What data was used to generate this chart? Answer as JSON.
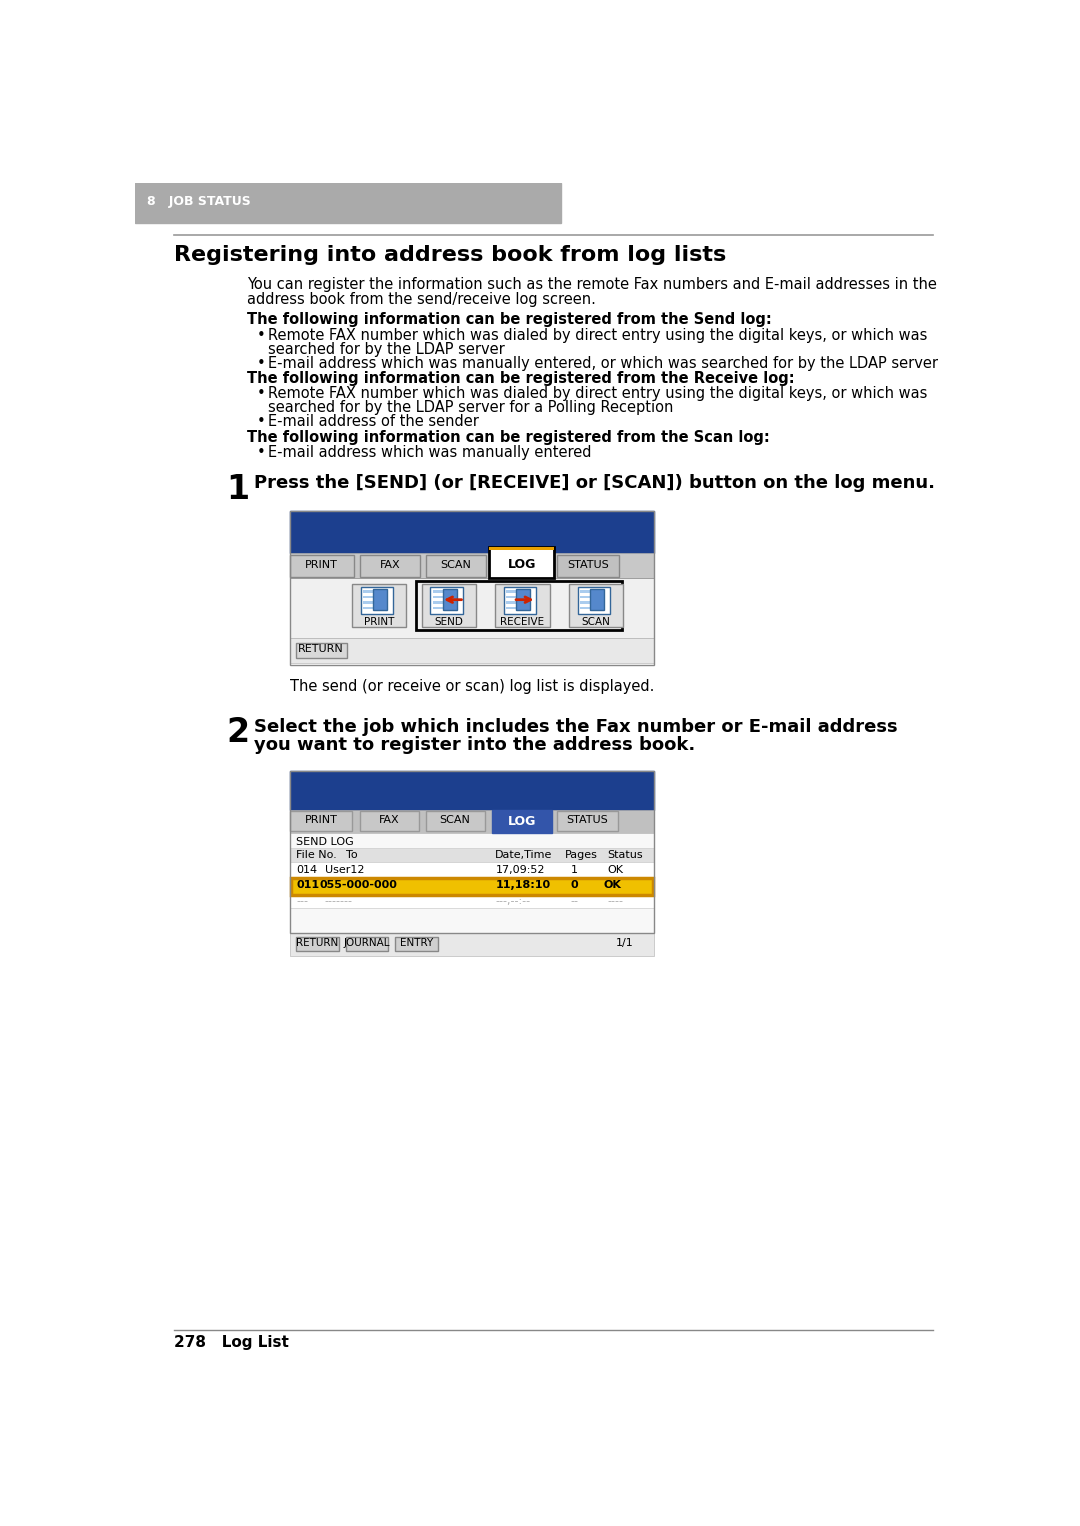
{
  "page_bg": "#ffffff",
  "header_bg": "#aaaaaa",
  "header_text": "8   JOB STATUS",
  "header_text_color": "#ffffff",
  "title": "Registering into address book from log lists",
  "bold_send": "The following information can be registered from the Send log:",
  "bullet_send_1a": "Remote FAX number which was dialed by direct entry using the digital keys, or which was",
  "bullet_send_1b": "searched for by the LDAP server",
  "bullet_send_2": "E-mail address which was manually entered, or which was searched for by the LDAP server",
  "bold_receive": "The following information can be registered from the Receive log:",
  "bullet_receive_1a": "Remote FAX number which was dialed by direct entry using the digital keys, or which was",
  "bullet_receive_1b": "searched for by the LDAP server for a Polling Reception",
  "bullet_receive_2": "E-mail address of the sender",
  "bold_scan": "The following information can be registered from the Scan log:",
  "bullet_scan_1": "E-mail address which was manually entered",
  "step1_text": "Press the [SEND] (or [RECEIVE] or [SCAN]) button on the log menu.",
  "step1_note": "The send (or receive or scan) log list is displayed.",
  "step2_line1": "Select the job which includes the Fax number or E-mail address",
  "step2_line2": "you want to register into the address book.",
  "footer_text": "278   Log List",
  "ui_blue": "#1c3f8e",
  "ui_blue2": "#1c4a9e",
  "tab_gray": "#c8c8c8",
  "tab_white": "#f0f0f0",
  "log_tab_bg": "#ffffff",
  "content_bg": "#f0f0f0",
  "orange": "#e8a000",
  "black_border": "#000000",
  "row_highlight": "#f0c000",
  "row_highlight_border": "#cc8800"
}
